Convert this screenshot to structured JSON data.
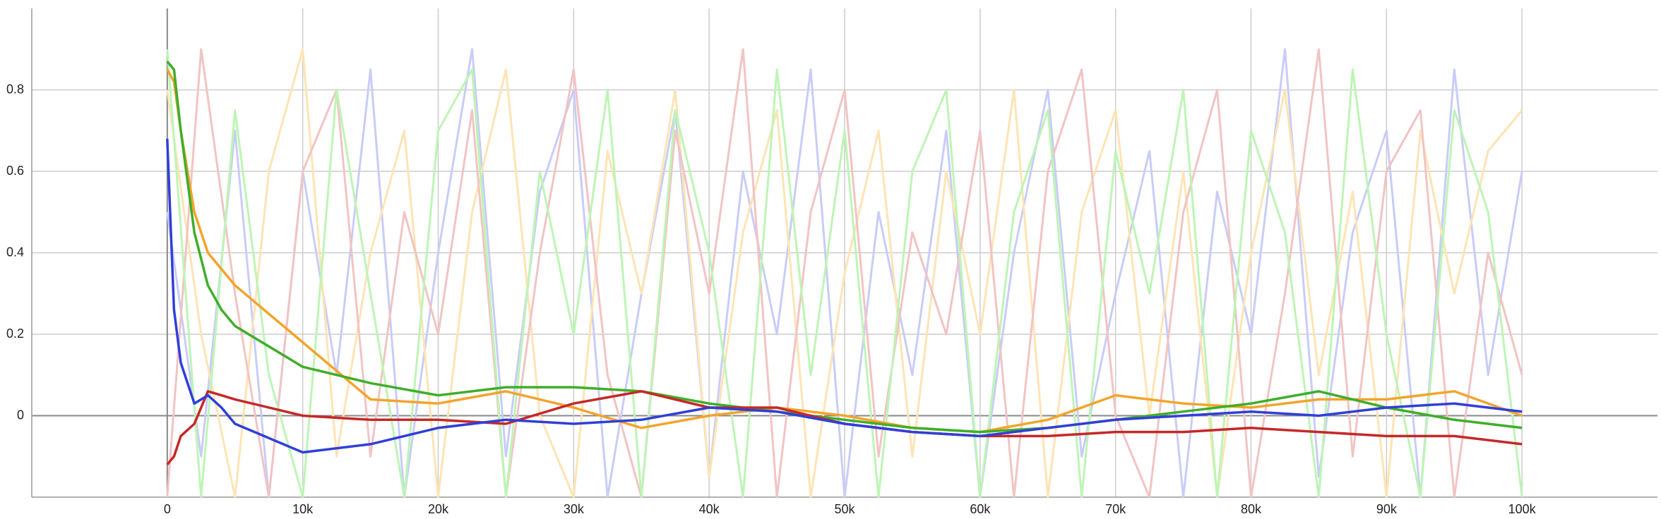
{
  "chart_data": {
    "type": "line",
    "xlim": [
      -10000,
      110000
    ],
    "ylim": [
      -0.2,
      1.0
    ],
    "xticks": [
      0,
      {
        "value": 10000,
        "label": "10k"
      },
      {
        "value": 20000,
        "label": "20k"
      },
      {
        "value": 30000,
        "label": "30k"
      },
      {
        "value": 40000,
        "label": "40k"
      },
      {
        "value": 50000,
        "label": "50k"
      },
      {
        "value": 60000,
        "label": "60k"
      },
      {
        "value": 70000,
        "label": "70k"
      },
      {
        "value": 80000,
        "label": "80k"
      },
      {
        "value": 90000,
        "label": "90k"
      },
      {
        "value": 100000,
        "label": "100k"
      }
    ],
    "yticks": [
      0,
      0.2,
      0.4,
      0.6,
      0.8
    ],
    "grid": true,
    "raw_series": [
      {
        "color": "#c9ccf7",
        "x": [
          0,
          2500,
          5000,
          7500,
          10000,
          12500,
          15000,
          17500,
          20000,
          22500,
          25000,
          27500,
          30000,
          32500,
          35000,
          37500,
          40000,
          42500,
          45000,
          47500,
          50000,
          52500,
          55000,
          57500,
          60000,
          62500,
          65000,
          67500,
          70000,
          72500,
          75000,
          77500,
          80000,
          82500,
          85000,
          87500,
          90000,
          92500,
          95000,
          97500,
          100000
        ],
        "values": [
          0.5,
          -0.1,
          0.7,
          -0.2,
          0.6,
          0.1,
          0.85,
          -0.2,
          0.4,
          0.9,
          -0.1,
          0.55,
          0.8,
          -0.2,
          0.3,
          0.75,
          -0.15,
          0.6,
          0.2,
          0.85,
          -0.2,
          0.5,
          0.1,
          0.7,
          -0.2,
          0.4,
          0.8,
          -0.1,
          0.3,
          0.65,
          -0.2,
          0.55,
          0.2,
          0.9,
          -0.15,
          0.45,
          0.7,
          -0.2,
          0.85,
          0.1,
          0.6
        ]
      },
      {
        "color": "#fde4b4",
        "x": [
          0,
          2500,
          5000,
          7500,
          10000,
          12500,
          15000,
          17500,
          20000,
          22500,
          25000,
          27500,
          30000,
          32500,
          35000,
          37500,
          40000,
          42500,
          45000,
          47500,
          50000,
          52500,
          55000,
          57500,
          60000,
          62500,
          65000,
          67500,
          70000,
          72500,
          75000,
          77500,
          80000,
          82500,
          85000,
          87500,
          90000,
          92500,
          95000,
          97500,
          100000
        ],
        "values": [
          0.8,
          0.2,
          -0.2,
          0.6,
          0.9,
          -0.1,
          0.4,
          0.7,
          -0.2,
          0.5,
          0.85,
          0.0,
          -0.2,
          0.65,
          0.3,
          0.8,
          -0.15,
          0.45,
          0.75,
          -0.2,
          0.35,
          0.7,
          -0.1,
          0.6,
          0.2,
          0.8,
          -0.2,
          0.5,
          0.75,
          0.0,
          0.6,
          -0.2,
          0.4,
          0.8,
          0.1,
          0.55,
          -0.2,
          0.7,
          0.3,
          0.65,
          0.75
        ]
      },
      {
        "color": "#f2c3c3",
        "x": [
          0,
          2500,
          5000,
          7500,
          10000,
          12500,
          15000,
          17500,
          20000,
          22500,
          25000,
          27500,
          30000,
          32500,
          35000,
          37500,
          40000,
          42500,
          45000,
          47500,
          50000,
          52500,
          55000,
          57500,
          60000,
          62500,
          65000,
          67500,
          70000,
          72500,
          75000,
          77500,
          80000,
          82500,
          85000,
          87500,
          90000,
          92500,
          95000,
          97500,
          100000
        ],
        "values": [
          -0.2,
          0.9,
          0.3,
          -0.2,
          0.6,
          0.8,
          -0.1,
          0.5,
          0.2,
          0.75,
          -0.2,
          0.4,
          0.85,
          0.1,
          -0.2,
          0.7,
          0.3,
          0.9,
          -0.2,
          0.5,
          0.8,
          -0.1,
          0.45,
          0.2,
          0.7,
          -0.2,
          0.6,
          0.85,
          0.0,
          -0.2,
          0.5,
          0.8,
          -0.2,
          0.3,
          0.9,
          -0.1,
          0.6,
          0.75,
          -0.2,
          0.4,
          0.1
        ]
      },
      {
        "color": "#bdf5b5",
        "x": [
          0,
          2500,
          5000,
          7500,
          10000,
          12500,
          15000,
          17500,
          20000,
          22500,
          25000,
          27500,
          30000,
          32500,
          35000,
          37500,
          40000,
          42500,
          45000,
          47500,
          50000,
          52500,
          55000,
          57500,
          60000,
          62500,
          65000,
          67500,
          70000,
          72500,
          75000,
          77500,
          80000,
          82500,
          85000,
          87500,
          90000,
          92500,
          95000,
          97500,
          100000
        ],
        "values": [
          0.9,
          -0.2,
          0.75,
          0.1,
          -0.2,
          0.8,
          0.3,
          -0.2,
          0.7,
          0.85,
          -0.2,
          0.6,
          0.2,
          0.8,
          -0.2,
          0.75,
          0.4,
          -0.2,
          0.85,
          0.1,
          0.7,
          -0.2,
          0.6,
          0.8,
          -0.2,
          0.5,
          0.75,
          -0.2,
          0.65,
          0.3,
          0.8,
          -0.2,
          0.7,
          0.45,
          -0.2,
          0.85,
          0.2,
          -0.2,
          0.75,
          0.5,
          -0.2
        ]
      }
    ],
    "series": [
      {
        "color": "#f2a42c",
        "x": [
          0,
          500,
          1000,
          2000,
          3000,
          4000,
          5000,
          10000,
          15000,
          20000,
          25000,
          30000,
          35000,
          40000,
          45000,
          50000,
          55000,
          60000,
          65000,
          70000,
          75000,
          80000,
          85000,
          90000,
          95000,
          100000
        ],
        "values": [
          0.85,
          0.82,
          0.7,
          0.5,
          0.4,
          0.36,
          0.32,
          0.18,
          0.04,
          0.03,
          0.06,
          0.02,
          -0.03,
          0.0,
          0.02,
          0.0,
          -0.03,
          -0.04,
          -0.01,
          0.05,
          0.03,
          0.02,
          0.04,
          0.04,
          0.06,
          0.0
        ]
      },
      {
        "color": "#3fae2a",
        "x": [
          0,
          500,
          1000,
          2000,
          3000,
          4000,
          5000,
          10000,
          15000,
          20000,
          25000,
          30000,
          35000,
          40000,
          45000,
          50000,
          55000,
          60000,
          65000,
          70000,
          75000,
          80000,
          85000,
          90000,
          95000,
          100000
        ],
        "values": [
          0.87,
          0.85,
          0.7,
          0.45,
          0.32,
          0.26,
          0.22,
          0.12,
          0.08,
          0.05,
          0.07,
          0.07,
          0.06,
          0.03,
          0.01,
          -0.01,
          -0.03,
          -0.04,
          -0.03,
          -0.01,
          0.01,
          0.03,
          0.06,
          0.02,
          -0.01,
          -0.03
        ]
      },
      {
        "color": "#c62828",
        "x": [
          0,
          500,
          1000,
          2000,
          3000,
          4000,
          5000,
          10000,
          15000,
          20000,
          25000,
          30000,
          35000,
          40000,
          45000,
          50000,
          55000,
          60000,
          65000,
          70000,
          75000,
          80000,
          85000,
          90000,
          95000,
          100000
        ],
        "values": [
          -0.12,
          -0.1,
          -0.05,
          -0.02,
          0.06,
          0.05,
          0.04,
          0.0,
          -0.01,
          -0.01,
          -0.02,
          0.03,
          0.06,
          0.02,
          0.02,
          -0.02,
          -0.04,
          -0.05,
          -0.05,
          -0.04,
          -0.04,
          -0.03,
          -0.04,
          -0.05,
          -0.05,
          -0.07
        ]
      },
      {
        "color": "#2f3fd8",
        "x": [
          0,
          500,
          1000,
          2000,
          3000,
          4000,
          5000,
          10000,
          15000,
          20000,
          25000,
          30000,
          35000,
          40000,
          45000,
          50000,
          55000,
          60000,
          65000,
          70000,
          75000,
          80000,
          85000,
          90000,
          95000,
          100000
        ],
        "values": [
          0.68,
          0.26,
          0.13,
          0.03,
          0.05,
          0.02,
          -0.02,
          -0.09,
          -0.07,
          -0.03,
          -0.01,
          -0.02,
          -0.01,
          0.02,
          0.01,
          -0.02,
          -0.04,
          -0.05,
          -0.03,
          -0.01,
          0.0,
          0.01,
          0.0,
          0.02,
          0.03,
          0.01
        ]
      }
    ]
  }
}
